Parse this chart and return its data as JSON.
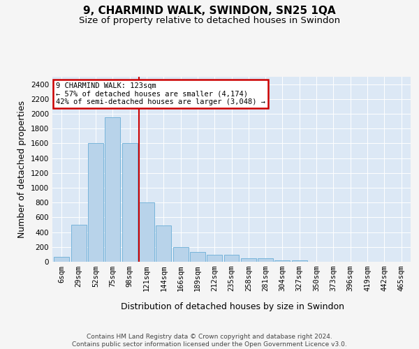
{
  "title": "9, CHARMIND WALK, SWINDON, SN25 1QA",
  "subtitle": "Size of property relative to detached houses in Swindon",
  "xlabel": "Distribution of detached houses by size in Swindon",
  "ylabel": "Number of detached properties",
  "footer_line1": "Contains HM Land Registry data © Crown copyright and database right 2024.",
  "footer_line2": "Contains public sector information licensed under the Open Government Licence v3.0.",
  "categories": [
    "6sqm",
    "29sqm",
    "52sqm",
    "75sqm",
    "98sqm",
    "121sqm",
    "144sqm",
    "166sqm",
    "189sqm",
    "212sqm",
    "235sqm",
    "258sqm",
    "281sqm",
    "304sqm",
    "327sqm",
    "350sqm",
    "373sqm",
    "396sqm",
    "419sqm",
    "442sqm",
    "465sqm"
  ],
  "values": [
    70,
    500,
    1600,
    1950,
    1600,
    800,
    490,
    200,
    130,
    90,
    90,
    50,
    50,
    20,
    20,
    0,
    0,
    0,
    0,
    0,
    0
  ],
  "bar_color": "#b8d3ea",
  "bar_edge_color": "#6aaed6",
  "red_line_index": 5,
  "red_line_color": "#cc0000",
  "annotation_line1": "9 CHARMIND WALK: 123sqm",
  "annotation_line2": "← 57% of detached houses are smaller (4,174)",
  "annotation_line3": "42% of semi-detached houses are larger (3,048) →",
  "annotation_box_facecolor": "#ffffff",
  "annotation_box_edgecolor": "#cc0000",
  "ylim": [
    0,
    2500
  ],
  "yticks": [
    0,
    200,
    400,
    600,
    800,
    1000,
    1200,
    1400,
    1600,
    1800,
    2000,
    2200,
    2400
  ],
  "fig_bg_color": "#f5f5f5",
  "plot_bg_color": "#dce8f5",
  "grid_color": "#ffffff",
  "title_fontsize": 11,
  "subtitle_fontsize": 9.5,
  "tick_fontsize": 7.5,
  "ylabel_fontsize": 9,
  "xlabel_fontsize": 9,
  "annotation_fontsize": 7.5,
  "footer_fontsize": 6.5
}
